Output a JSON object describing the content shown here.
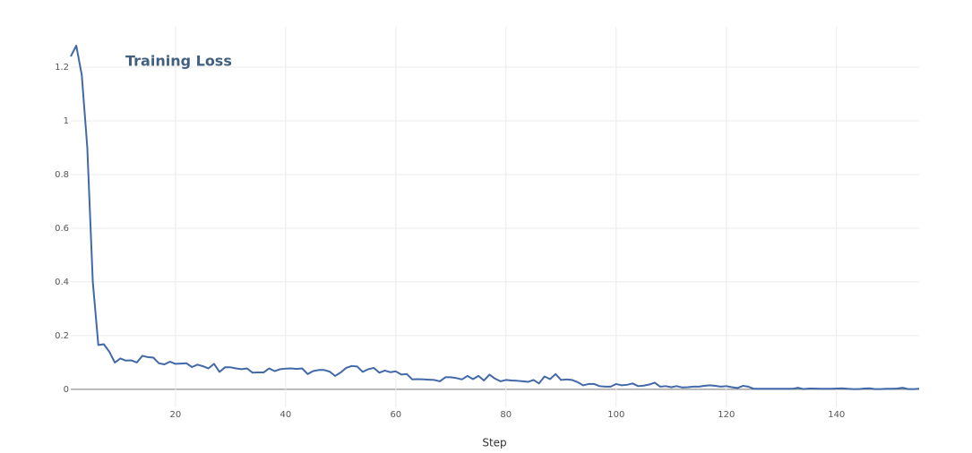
{
  "chart_data": {
    "type": "line",
    "title": "Training Loss",
    "x_label": "Step",
    "x": [
      1,
      2,
      3,
      4,
      5,
      6,
      7,
      8,
      9,
      10,
      11,
      12,
      13,
      14,
      15,
      16,
      17,
      18,
      19,
      20,
      21,
      22,
      23,
      24,
      25,
      26,
      27,
      28,
      29,
      30,
      31,
      32,
      33,
      34,
      35,
      36,
      37,
      38,
      39,
      40,
      41,
      42,
      43,
      44,
      45,
      46,
      47,
      48,
      49,
      50,
      51,
      52,
      53,
      54,
      55,
      56,
      57,
      58,
      59,
      60,
      61,
      62,
      63,
      64,
      65,
      66,
      67,
      68,
      69,
      70,
      71,
      72,
      73,
      74,
      75,
      76,
      77,
      78,
      79,
      80,
      81,
      82,
      83,
      84,
      85,
      86,
      87,
      88,
      89,
      90,
      91,
      92,
      93,
      94,
      95,
      96,
      97,
      98,
      99,
      100,
      101,
      102,
      103,
      104,
      105,
      106,
      107,
      108,
      109,
      110,
      111,
      112,
      113,
      114,
      115,
      116,
      117,
      118,
      119,
      120,
      121,
      122,
      123,
      124,
      125,
      126,
      127,
      128,
      129,
      130,
      131,
      132,
      133,
      134,
      135,
      136,
      137,
      138,
      139,
      140,
      141,
      142,
      143,
      144,
      145,
      146,
      147,
      148,
      149,
      150,
      151,
      152,
      153,
      154,
      155
    ],
    "series": [
      {
        "name": "Training Loss",
        "color": "#4169a8",
        "values": [
          1.24,
          1.28,
          1.17,
          0.9,
          0.4,
          0.165,
          0.168,
          0.14,
          0.1,
          0.115,
          0.107,
          0.108,
          0.1,
          0.125,
          0.12,
          0.118,
          0.097,
          0.093,
          0.103,
          0.095,
          0.096,
          0.097,
          0.083,
          0.092,
          0.086,
          0.078,
          0.095,
          0.065,
          0.082,
          0.082,
          0.078,
          0.075,
          0.078,
          0.062,
          0.063,
          0.063,
          0.078,
          0.068,
          0.075,
          0.077,
          0.078,
          0.076,
          0.078,
          0.057,
          0.068,
          0.072,
          0.072,
          0.066,
          0.05,
          0.063,
          0.08,
          0.087,
          0.085,
          0.065,
          0.075,
          0.08,
          0.062,
          0.07,
          0.064,
          0.067,
          0.055,
          0.057,
          0.037,
          0.038,
          0.037,
          0.036,
          0.035,
          0.03,
          0.045,
          0.045,
          0.042,
          0.037,
          0.05,
          0.038,
          0.05,
          0.033,
          0.055,
          0.04,
          0.03,
          0.035,
          0.033,
          0.032,
          0.03,
          0.028,
          0.035,
          0.022,
          0.048,
          0.038,
          0.057,
          0.035,
          0.037,
          0.035,
          0.027,
          0.015,
          0.02,
          0.02,
          0.012,
          0.01,
          0.01,
          0.02,
          0.015,
          0.017,
          0.022,
          0.012,
          0.014,
          0.018,
          0.025,
          0.01,
          0.012,
          0.008,
          0.012,
          0.007,
          0.008,
          0.01,
          0.01,
          0.013,
          0.015,
          0.013,
          0.01,
          0.012,
          0.008,
          0.005,
          0.013,
          0.01,
          0.002,
          0.002,
          0.002,
          0.002,
          0.002,
          0.002,
          0.002,
          0.002,
          0.006,
          0.001,
          0.003,
          0.003,
          0.002,
          0.002,
          0.002,
          0.003,
          0.004,
          0.002,
          0.001,
          0.001,
          0.003,
          0.004,
          0.001,
          0.001,
          0.002,
          0.002,
          0.003,
          0.006,
          0.001,
          0.001,
          0.002
        ]
      }
    ],
    "xlim": [
      1,
      155
    ],
    "ylim": [
      -0.067,
      1.35
    ],
    "xticks": [
      20,
      40,
      60,
      80,
      100,
      120,
      140
    ],
    "yticks": [
      0,
      0.2,
      0.4,
      0.6,
      0.8,
      1,
      1.2
    ],
    "grid": true
  }
}
